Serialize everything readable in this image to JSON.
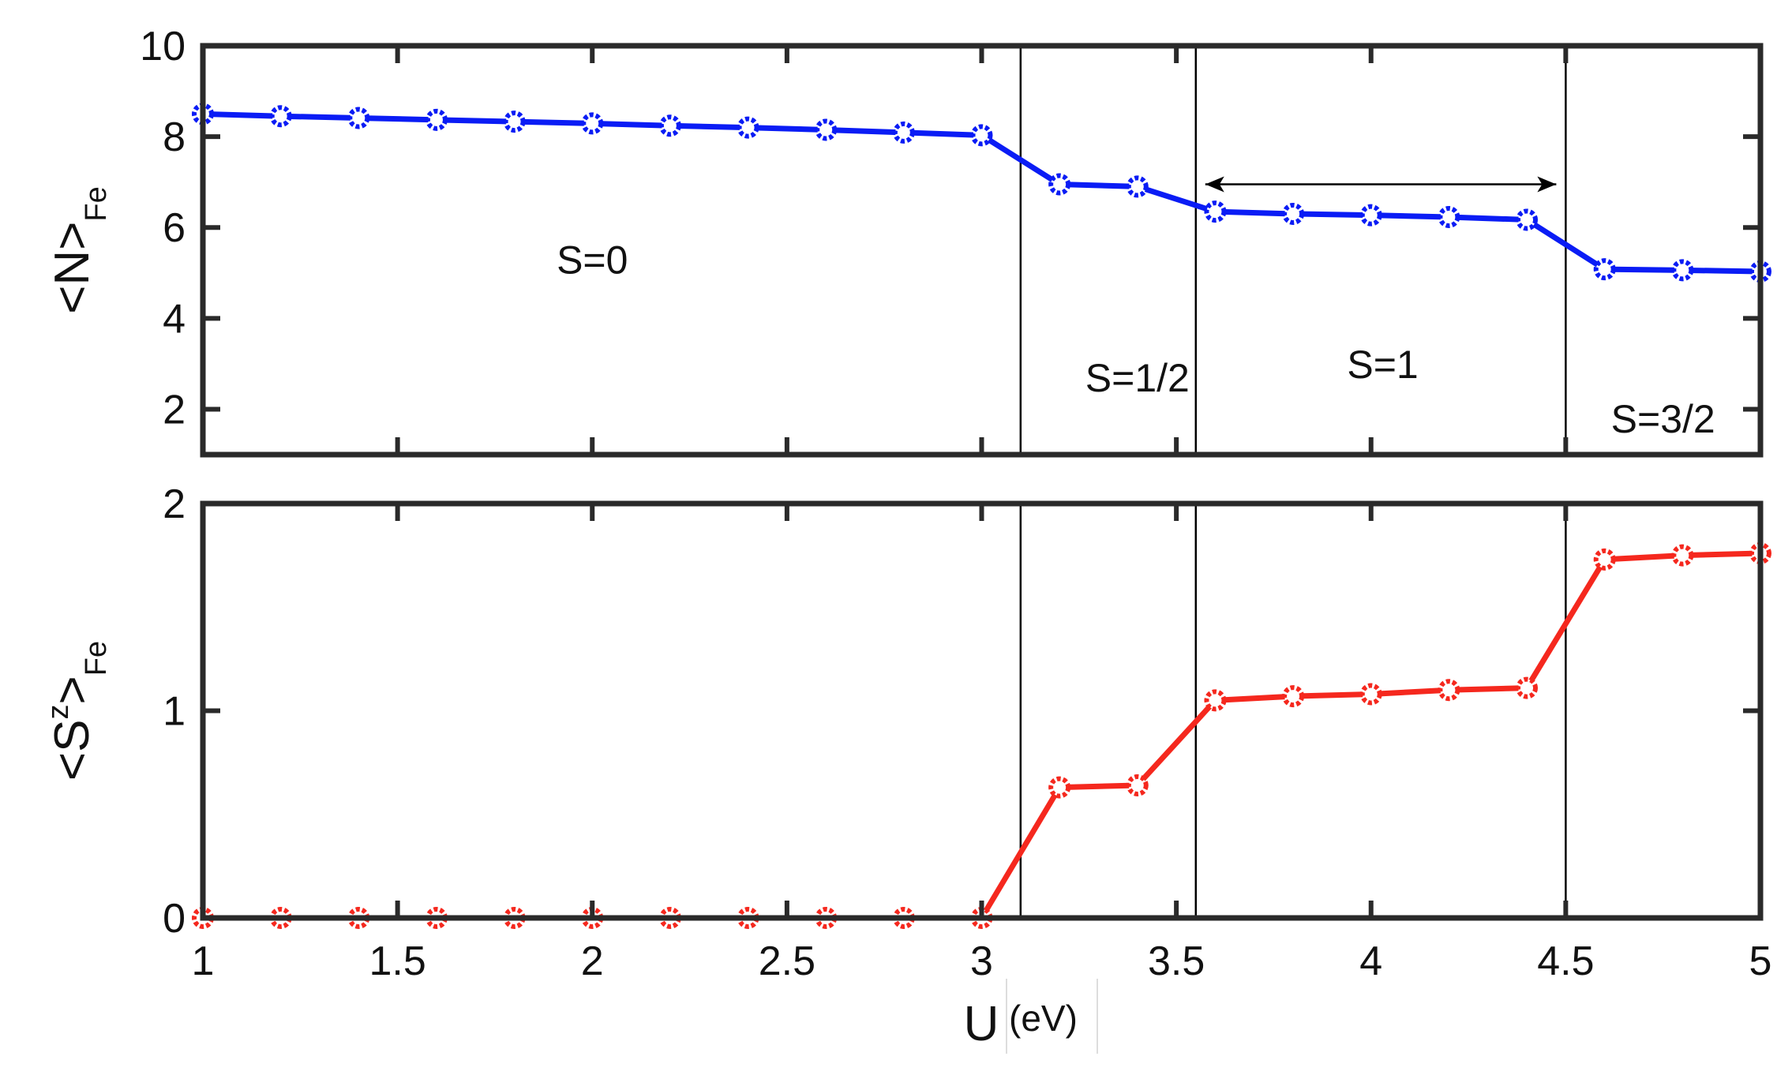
{
  "colors": {
    "top_series": "#0a1cf5",
    "bottom_series": "#f5281e",
    "axes": "#2a2a2a",
    "lines": "#000000"
  },
  "chart_data": [
    {
      "type": "line",
      "panel": "top",
      "ylabel": {
        "main": "<N>",
        "sub": "Fe"
      },
      "xlim": [
        1,
        5
      ],
      "ylim": [
        1,
        10
      ],
      "yticks": [
        2,
        4,
        6,
        8,
        10
      ],
      "x": [
        1.0,
        1.2,
        1.4,
        1.6,
        1.8,
        2.0,
        2.2,
        2.4,
        2.6,
        2.8,
        3.0,
        3.2,
        3.4,
        3.6,
        3.8,
        4.0,
        4.2,
        4.4,
        4.6,
        4.8,
        5.0
      ],
      "series": [
        {
          "values": [
            8.5,
            8.45,
            8.41,
            8.37,
            8.33,
            8.29,
            8.24,
            8.2,
            8.15,
            8.09,
            8.03,
            6.95,
            6.9,
            6.35,
            6.3,
            6.27,
            6.23,
            6.17,
            5.08,
            5.06,
            5.03
          ],
          "color": "#0a1cf5",
          "marker": "circle"
        }
      ],
      "vlines": [
        3.1,
        3.55,
        4.5
      ],
      "annotations": [
        {
          "text": "S=0",
          "x": 2.0,
          "y": 5.3
        },
        {
          "text": "S=1/2",
          "x": 3.4,
          "y": 2.7
        },
        {
          "text": "S=1",
          "x": 4.03,
          "y": 3.0
        },
        {
          "text": "S=3/2",
          "x": 4.75,
          "y": 1.8
        }
      ],
      "double_arrow": {
        "x1": 3.55,
        "x2": 4.5,
        "y": 6.95
      }
    },
    {
      "type": "line",
      "panel": "bottom",
      "ylabel": {
        "main": "<S",
        "sup": "z",
        "close": ">",
        "sub": "Fe"
      },
      "xlabel": "U",
      "xlabel_unit": "(eV)",
      "xlim": [
        1,
        5
      ],
      "ylim": [
        0,
        2
      ],
      "yticks": [
        0,
        1,
        2
      ],
      "xticks": [
        1,
        1.5,
        2,
        2.5,
        3,
        3.5,
        4,
        4.5,
        5
      ],
      "xtick_labels": [
        "1",
        "1.5",
        "2",
        "2.5",
        "3",
        "3.5",
        "4",
        "4.5",
        "5"
      ],
      "x": [
        1.0,
        1.2,
        1.4,
        1.6,
        1.8,
        2.0,
        2.2,
        2.4,
        2.6,
        2.8,
        3.0,
        3.2,
        3.4,
        3.6,
        3.8,
        4.0,
        4.2,
        4.4,
        4.6,
        4.8,
        5.0
      ],
      "series": [
        {
          "values": [
            0,
            0,
            0,
            0,
            0,
            0,
            0,
            0,
            0,
            0,
            0,
            0.63,
            0.64,
            1.05,
            1.07,
            1.08,
            1.1,
            1.11,
            1.73,
            1.75,
            1.76
          ],
          "color": "#f5281e",
          "marker": "circle"
        }
      ],
      "vlines": [
        3.1,
        3.55,
        4.5
      ]
    }
  ]
}
